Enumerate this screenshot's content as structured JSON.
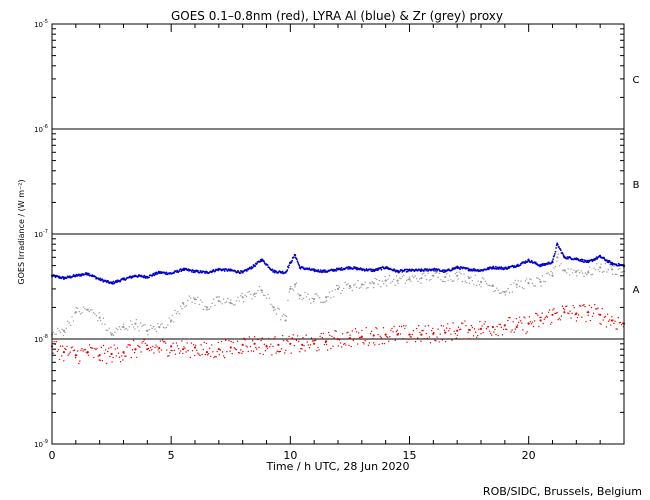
{
  "chart_data": {
    "type": "scatter",
    "title": "GOES 0.1–0.8nm (red), LYRA Al (blue) & Zr (grey) proxy",
    "xlabel": "Time / h UTC, 28 Jun 2020",
    "ylabel": "GOES Irradiance / (W m⁻²)",
    "x_range": [
      0,
      24
    ],
    "y_range": [
      1e-09,
      1e-05
    ],
    "y_scale": "log",
    "x_ticks": [
      0,
      5,
      10,
      15,
      20
    ],
    "x_tick_labels": [
      "0",
      "5",
      "10",
      "15",
      "20"
    ],
    "y_ticks": [
      1e-09,
      1e-08,
      1e-07,
      1e-06,
      1e-05
    ],
    "y_tick_labels": [
      {
        "base": "10",
        "exp": "-9"
      },
      {
        "base": "10",
        "exp": "-8"
      },
      {
        "base": "10",
        "exp": "-7"
      },
      {
        "base": "10",
        "exp": "-6"
      },
      {
        "base": "10",
        "exp": "-5"
      }
    ],
    "flare_class_lines": [
      1e-08,
      1e-07,
      1e-06
    ],
    "flare_classes": [
      {
        "label": "A",
        "level": 3e-08
      },
      {
        "label": "B",
        "level": 3e-07
      },
      {
        "label": "C",
        "level": 3e-06
      }
    ],
    "series": [
      {
        "color": "#0000cc",
        "x": [
          0,
          0.5,
          1,
          1.5,
          2,
          2.5,
          3,
          3.5,
          4,
          4.5,
          5,
          5.5,
          6,
          6.5,
          7,
          7.5,
          8,
          8.5,
          8.8,
          9.3,
          9.8,
          10.0,
          10.2,
          10.4,
          11,
          11.5,
          12,
          12.5,
          13,
          13.5,
          14,
          14.5,
          15,
          15.5,
          16,
          16.5,
          17,
          17.5,
          18,
          18.5,
          19,
          19.5,
          20,
          20.5,
          21,
          21.2,
          21.5,
          22,
          22.5,
          23,
          23.5,
          24
        ],
        "y": [
          4e-08,
          3.8e-08,
          4e-08,
          4.2e-08,
          3.7e-08,
          3.4e-08,
          3.7e-08,
          4e-08,
          3.9e-08,
          4.3e-08,
          4.2e-08,
          4.6e-08,
          4.4e-08,
          4.3e-08,
          4.6e-08,
          4.5e-08,
          4.3e-08,
          5e-08,
          5.7e-08,
          4.4e-08,
          4.3e-08,
          5.3e-08,
          6.3e-08,
          4.8e-08,
          4.5e-08,
          4.4e-08,
          4.6e-08,
          4.8e-08,
          4.6e-08,
          4.5e-08,
          4.8e-08,
          4.4e-08,
          4.5e-08,
          4.5e-08,
          4.6e-08,
          4.4e-08,
          4.8e-08,
          4.6e-08,
          4.5e-08,
          4.8e-08,
          4.7e-08,
          5e-08,
          5.6e-08,
          5e-08,
          5.4e-08,
          8e-08,
          6e-08,
          5.8e-08,
          5.4e-08,
          6.1e-08,
          5.2e-08,
          5e-08
        ]
      },
      {
        "color": "#999999",
        "x": [
          0,
          0.5,
          1,
          1.5,
          2,
          2.5,
          3,
          3.5,
          4,
          4.5,
          5,
          5.5,
          6,
          6.5,
          7,
          7.5,
          8,
          8.5,
          8.8,
          9.3,
          9.8,
          10.0,
          10.2,
          10.4,
          11,
          11.5,
          12,
          12.5,
          13,
          13.5,
          14,
          14.5,
          15,
          15.5,
          16,
          16.5,
          17,
          17.5,
          18,
          18.5,
          19,
          19.5,
          20,
          20.5,
          21,
          21.2,
          21.5,
          22,
          22.5,
          23,
          23.5,
          24
        ],
        "y": [
          1.1e-08,
          1.2e-08,
          1.8e-08,
          1.9e-08,
          1.6e-08,
          1.1e-08,
          1.3e-08,
          1.4e-08,
          1.2e-08,
          1.3e-08,
          1.5e-08,
          2.2e-08,
          2.4e-08,
          2e-08,
          2.3e-08,
          2.2e-08,
          2.5e-08,
          2.7e-08,
          2.9e-08,
          2e-08,
          1.5e-08,
          3e-08,
          3.3e-08,
          2.6e-08,
          2.4e-08,
          2.5e-08,
          3e-08,
          3.2e-08,
          3.3e-08,
          3.4e-08,
          3.6e-08,
          3.6e-08,
          3.7e-08,
          3.8e-08,
          4e-08,
          3.9e-08,
          4e-08,
          3.8e-08,
          3.5e-08,
          3.2e-08,
          2.8e-08,
          3.3e-08,
          3.4e-08,
          3.5e-08,
          4e-08,
          6e-08,
          4.5e-08,
          4.4e-08,
          4.3e-08,
          4.8e-08,
          4.6e-08,
          4.4e-08
        ]
      },
      {
        "color": "#ee0000",
        "x": [
          0,
          0.5,
          1,
          1.5,
          2,
          2.5,
          3,
          3.5,
          4,
          4.5,
          5,
          5.5,
          6,
          6.5,
          7,
          7.5,
          8,
          8.5,
          9,
          9.5,
          10,
          10.5,
          11,
          11.5,
          12,
          12.5,
          13,
          13.5,
          14,
          14.5,
          15,
          15.5,
          16,
          16.5,
          17,
          17.5,
          18,
          18.5,
          19,
          19.5,
          20,
          20.5,
          21,
          21.5,
          22,
          22.5,
          23,
          23.5,
          24
        ],
        "y": [
          8.5e-09,
          7.5e-09,
          7e-09,
          7.5e-09,
          7e-09,
          7.2e-09,
          7.5e-09,
          8e-09,
          8e-09,
          8.2e-09,
          8.5e-09,
          8e-09,
          8.3e-09,
          7.5e-09,
          8e-09,
          8.3e-09,
          8.8e-09,
          9e-09,
          8.5e-09,
          8.8e-09,
          9e-09,
          8.8e-09,
          9e-09,
          9.5e-09,
          1e-08,
          1.02e-08,
          1.05e-08,
          1.08e-08,
          1.1e-08,
          1.1e-08,
          1.1e-08,
          1.1e-08,
          1.12e-08,
          1.15e-08,
          1.2e-08,
          1.22e-08,
          1.25e-08,
          1.3e-08,
          1.35e-08,
          1.3e-08,
          1.4e-08,
          1.5e-08,
          1.7e-08,
          1.8e-08,
          1.75e-08,
          1.8e-08,
          1.7e-08,
          1.5e-08,
          1.4e-08
        ]
      }
    ],
    "annotations": [
      {
        "text": "ROB/SIDC, Brussels, Belgium",
        "position": "bottom-right"
      }
    ],
    "grid": false,
    "legend": "none"
  }
}
